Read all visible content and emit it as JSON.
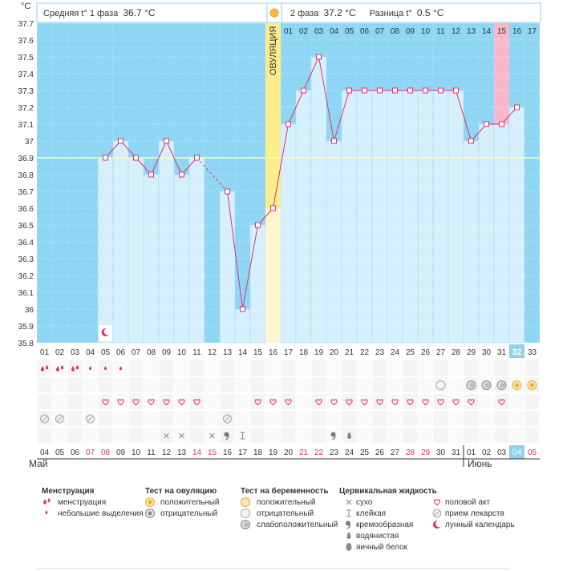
{
  "chart_data": {
    "type": "line",
    "y_unit": "°C",
    "ylim": [
      35.8,
      37.7
    ],
    "y_ticks": [
      "35.8",
      "35.9",
      "36",
      "36.1",
      "36.2",
      "36.3",
      "36.4",
      "36.5",
      "36.6",
      "36.7",
      "36.8",
      "36.9",
      "37",
      "37.1",
      "37.2",
      "37.3",
      "37.4",
      "37.5",
      "37.6",
      "37.7"
    ],
    "coverline": 36.9,
    "header": {
      "phase1_label": "Средняя t° 1 фаза",
      "phase1_value": "36.7 °C",
      "phase2_label": "2 фаза",
      "phase2_value": "37.2 °C",
      "diff_label": "Разница t°",
      "diff_value": "0.5 °C"
    },
    "ovulation_label": "ОВУЛЯЦИЯ",
    "ovulation_day": 16,
    "cycle_days": [
      "01",
      "02",
      "03",
      "04",
      "05",
      "06",
      "07",
      "08",
      "09",
      "10",
      "11",
      "12",
      "13",
      "14",
      "15",
      "16",
      "17",
      "18",
      "19",
      "20",
      "21",
      "22",
      "23",
      "24",
      "25",
      "26",
      "27",
      "28",
      "29",
      "30",
      "31",
      "32",
      "33"
    ],
    "luteal_days": [
      "01",
      "02",
      "03",
      "04",
      "05",
      "06",
      "07",
      "08",
      "09",
      "10",
      "11",
      "12",
      "13",
      "14",
      "15",
      "16",
      "17"
    ],
    "temperatures": [
      null,
      null,
      null,
      null,
      36.9,
      37.0,
      36.9,
      36.8,
      37.0,
      36.8,
      36.9,
      null,
      36.7,
      36.0,
      36.5,
      36.6,
      37.1,
      37.3,
      37.5,
      37.0,
      37.3,
      37.3,
      37.3,
      37.3,
      37.3,
      37.3,
      37.3,
      37.3,
      37.0,
      37.1,
      37.1,
      37.2,
      null
    ],
    "calendar_dates": [
      "04",
      "05",
      "06",
      "07",
      "08",
      "09",
      "10",
      "11",
      "12",
      "13",
      "14",
      "15",
      "16",
      "17",
      "18",
      "19",
      "20",
      "21",
      "22",
      "23",
      "24",
      "25",
      "26",
      "27",
      "28",
      "29",
      "30",
      "31",
      "01",
      "02",
      "03",
      "04",
      "05"
    ],
    "weekend_dates_index": [
      3,
      4,
      10,
      11,
      17,
      18,
      24,
      25,
      32
    ],
    "months": {
      "first": "Май",
      "second": "Июнь"
    },
    "current_day_index": 31,
    "highlight_day_index": 30,
    "rows": {
      "menstruation": [
        "heavy",
        "heavy",
        "heavy",
        "light",
        "light",
        "light",
        null,
        null,
        null,
        null,
        null,
        null,
        null,
        null,
        null,
        null,
        null,
        null,
        null,
        null,
        null,
        null,
        null,
        null,
        null,
        null,
        null,
        null,
        null,
        null,
        null,
        null,
        null
      ],
      "tests": [
        null,
        null,
        null,
        null,
        null,
        null,
        null,
        null,
        null,
        null,
        null,
        null,
        null,
        null,
        null,
        null,
        null,
        null,
        null,
        null,
        null,
        null,
        null,
        null,
        null,
        null,
        "preg-neg",
        null,
        "preg-weak",
        "preg-weak",
        "preg-weak",
        "ov-pos",
        "ov-pos"
      ],
      "intercourse": [
        null,
        null,
        null,
        null,
        1,
        1,
        1,
        1,
        1,
        1,
        1,
        null,
        null,
        null,
        1,
        1,
        1,
        null,
        1,
        1,
        1,
        1,
        1,
        1,
        1,
        1,
        1,
        1,
        1,
        null,
        1,
        null,
        null
      ],
      "medication": [
        1,
        1,
        null,
        1,
        null,
        null,
        null,
        null,
        null,
        null,
        null,
        null,
        1,
        null,
        null,
        null,
        null,
        null,
        null,
        null,
        null,
        null,
        null,
        null,
        null,
        null,
        null,
        null,
        null,
        null,
        null,
        null,
        null
      ],
      "cervical": [
        null,
        null,
        null,
        null,
        null,
        null,
        null,
        null,
        "dry",
        "dry",
        null,
        "dry",
        "creamy",
        "sticky",
        null,
        null,
        null,
        null,
        null,
        "creamy",
        "watery",
        null,
        null,
        null,
        null,
        null,
        null,
        null,
        null,
        null,
        null,
        null,
        null
      ]
    },
    "moon_day_index": 4
  },
  "legend": {
    "menstruation": {
      "title": "Менструация",
      "items": [
        "менструация",
        "небольшие выделения"
      ]
    },
    "ovulation_test": {
      "title": "Тест на овуляцию",
      "items": [
        "положительный",
        "отрицательный"
      ]
    },
    "pregnancy_test": {
      "title": "Тест на беременность",
      "items": [
        "положительный",
        "отрицательный",
        "слабоположительный"
      ]
    },
    "cervical": {
      "title": "Цервикальная жидкость",
      "items": [
        "сухо",
        "клейкая",
        "кремообразная",
        "водянистая",
        "яичный белок"
      ]
    },
    "other": {
      "items": [
        "половой акт",
        "прием лекарств",
        "лунный календарь"
      ]
    }
  },
  "colors": {
    "sky": "#8ed6f4",
    "column": "#d5f0fc",
    "ovulation": "#fbec8c",
    "ovulation_pale": "#fdf6cf",
    "line": "#e0306e",
    "highlight": "#f8b8cc",
    "current": "#8ed0ee",
    "coverline": "#ffff99",
    "weekend": "#e0306e",
    "text": "#333333"
  }
}
